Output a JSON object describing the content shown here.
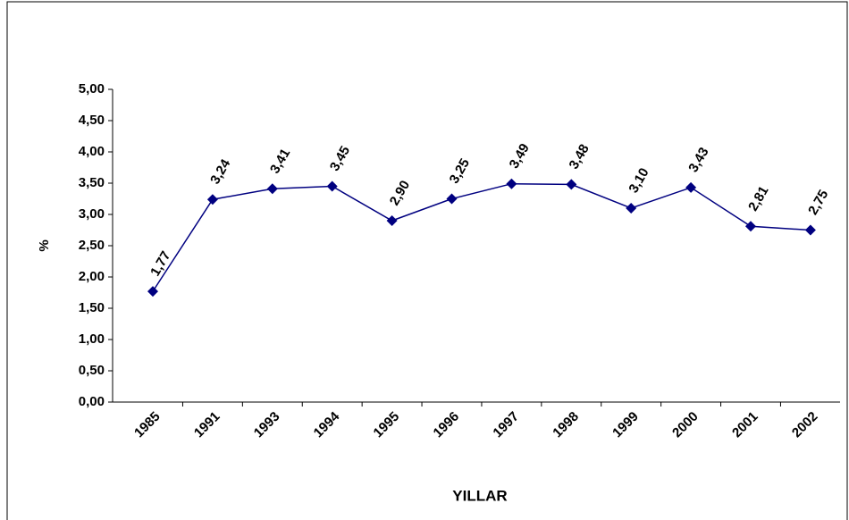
{
  "chart_data": {
    "type": "line",
    "x_label": "YILLAR",
    "y_label": "%",
    "categories": [
      "1985",
      "1991",
      "1993",
      "1994",
      "1995",
      "1996",
      "1997",
      "1998",
      "1999",
      "2000",
      "2001",
      "2002"
    ],
    "series": [
      {
        "name": "%",
        "color": "#000080",
        "values": [
          1.77,
          3.24,
          3.41,
          3.45,
          2.9,
          3.25,
          3.49,
          3.48,
          3.1,
          3.43,
          2.81,
          2.75
        ],
        "value_labels": [
          "1,77",
          "3,24",
          "3,41",
          "3,45",
          "2,90",
          "3,25",
          "3,49",
          "3,48",
          "3,10",
          "3,43",
          "2,81",
          "2,75"
        ]
      }
    ],
    "ylim": [
      0,
      5
    ],
    "yticks": [
      {
        "value": 0,
        "label": "0,00"
      },
      {
        "value": 0.5,
        "label": "0,50"
      },
      {
        "value": 1,
        "label": "1,00"
      },
      {
        "value": 1.5,
        "label": "1,50"
      },
      {
        "value": 2,
        "label": "2,00"
      },
      {
        "value": 2.5,
        "label": "2,50"
      },
      {
        "value": 3,
        "label": "3,00"
      },
      {
        "value": 3.5,
        "label": "3,50"
      },
      {
        "value": 4,
        "label": "4,00"
      },
      {
        "value": 4.5,
        "label": "4,50"
      },
      {
        "value": 5,
        "label": "5,00"
      }
    ]
  }
}
